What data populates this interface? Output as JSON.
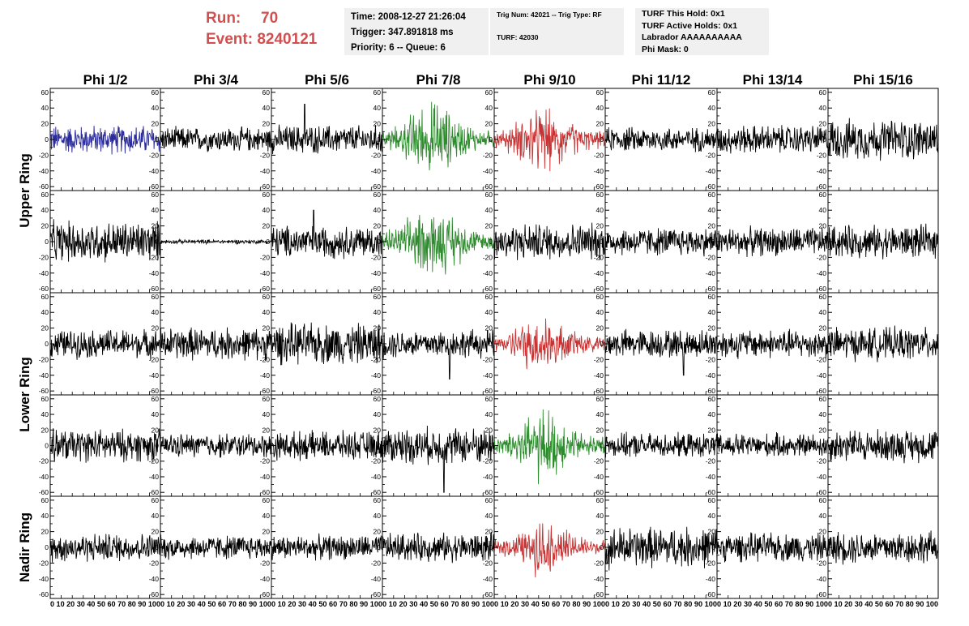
{
  "header": {
    "run_label": "Run:",
    "run_value": "70",
    "event_label": "Event:",
    "event_value": "8240121",
    "time_line": "Time: 2008-12-27 21:26:04",
    "trigger_line": "Trigger: 347.891818 ms",
    "priority_line": "Priority: 6 -- Queue: 6",
    "trig_line": "Trig Num: 42021 -- Trig Type: RF",
    "turf_line": "TURF: 42030",
    "turf_hold": "TURF This Hold: 0x1",
    "turf_active": "TURF Active Holds: 0x1",
    "labrador": "Labrador AAAAAAAAAA",
    "phi_mask": "Phi Mask: 0",
    "accent_color": "#d0504f"
  },
  "chart_data": {
    "type": "line",
    "columns": [
      "Phi 1/2",
      "Phi 3/4",
      "Phi 5/6",
      "Phi 7/8",
      "Phi 9/10",
      "Phi 11/12",
      "Phi 13/14",
      "Phi 15/16"
    ],
    "row_groups": [
      {
        "name": "Upper Ring",
        "rows": [
          0,
          1
        ]
      },
      {
        "name": "Lower Ring",
        "rows": [
          2,
          3
        ]
      },
      {
        "name": "Nadir Ring",
        "rows": [
          4
        ]
      }
    ],
    "ylim": [
      -65,
      65
    ],
    "xlim": [
      0,
      100
    ],
    "y_ticks": [
      -60,
      -40,
      -20,
      0,
      20,
      40,
      60
    ],
    "x_ticks_label": "0 10 20 30 40 50 60 70 80 90 100",
    "x_tick_sequence": [
      "0",
      "10",
      "20",
      "30",
      "40",
      "50",
      "60",
      "70",
      "80",
      "90",
      "100"
    ],
    "grid": false,
    "colors": {
      "default": "#000000",
      "blue": "#2b2b9a",
      "green": "#2e8b2e",
      "red": "#c83232"
    },
    "panels": [
      [
        {
          "color": "blue",
          "amp": 14,
          "env": "flat"
        },
        {
          "color": "default",
          "amp": 12,
          "env": "flat"
        },
        {
          "color": "default",
          "amp": 14,
          "env": "flat",
          "spike": [
            30,
            45
          ]
        },
        {
          "color": "green",
          "amp": 30,
          "env": "bump"
        },
        {
          "color": "red",
          "amp": 28,
          "env": "bump"
        },
        {
          "color": "default",
          "amp": 12,
          "env": "flat"
        },
        {
          "color": "default",
          "amp": 14,
          "env": "flat"
        },
        {
          "color": "default",
          "amp": 20,
          "env": "flat"
        }
      ],
      [
        {
          "color": "default",
          "amp": 20,
          "env": "flat"
        },
        {
          "color": "default",
          "amp": 2,
          "env": "flat"
        },
        {
          "color": "default",
          "amp": 16,
          "env": "flat",
          "spike": [
            38,
            40
          ]
        },
        {
          "color": "green",
          "amp": 30,
          "env": "bump"
        },
        {
          "color": "default",
          "amp": 18,
          "env": "flat"
        },
        {
          "color": "default",
          "amp": 14,
          "env": "flat"
        },
        {
          "color": "default",
          "amp": 14,
          "env": "flat"
        },
        {
          "color": "default",
          "amp": 16,
          "env": "flat"
        }
      ],
      [
        {
          "color": "default",
          "amp": 14,
          "env": "flat"
        },
        {
          "color": "default",
          "amp": 16,
          "env": "flat"
        },
        {
          "color": "default",
          "amp": 20,
          "env": "flat"
        },
        {
          "color": "default",
          "amp": 14,
          "env": "flat",
          "spike": [
            60,
            -45
          ]
        },
        {
          "color": "red",
          "amp": 26,
          "env": "bump"
        },
        {
          "color": "default",
          "amp": 14,
          "env": "flat",
          "spike": [
            70,
            -40
          ]
        },
        {
          "color": "default",
          "amp": 14,
          "env": "flat"
        },
        {
          "color": "default",
          "amp": 16,
          "env": "flat"
        }
      ],
      [
        {
          "color": "default",
          "amp": 16,
          "env": "flat"
        },
        {
          "color": "default",
          "amp": 12,
          "env": "flat"
        },
        {
          "color": "default",
          "amp": 14,
          "env": "flat"
        },
        {
          "color": "default",
          "amp": 18,
          "env": "flat",
          "spike": [
            55,
            -60
          ]
        },
        {
          "color": "green",
          "amp": 30,
          "env": "bump"
        },
        {
          "color": "default",
          "amp": 12,
          "env": "flat"
        },
        {
          "color": "default",
          "amp": 12,
          "env": "flat"
        },
        {
          "color": "default",
          "amp": 16,
          "env": "flat"
        }
      ],
      [
        {
          "color": "default",
          "amp": 14,
          "env": "flat"
        },
        {
          "color": "default",
          "amp": 12,
          "env": "flat"
        },
        {
          "color": "default",
          "amp": 12,
          "env": "flat"
        },
        {
          "color": "default",
          "amp": 14,
          "env": "flat"
        },
        {
          "color": "red",
          "amp": 22,
          "env": "bump"
        },
        {
          "color": "default",
          "amp": 20,
          "env": "flat"
        },
        {
          "color": "default",
          "amp": 14,
          "env": "flat"
        },
        {
          "color": "default",
          "amp": 16,
          "env": "flat"
        }
      ]
    ]
  }
}
